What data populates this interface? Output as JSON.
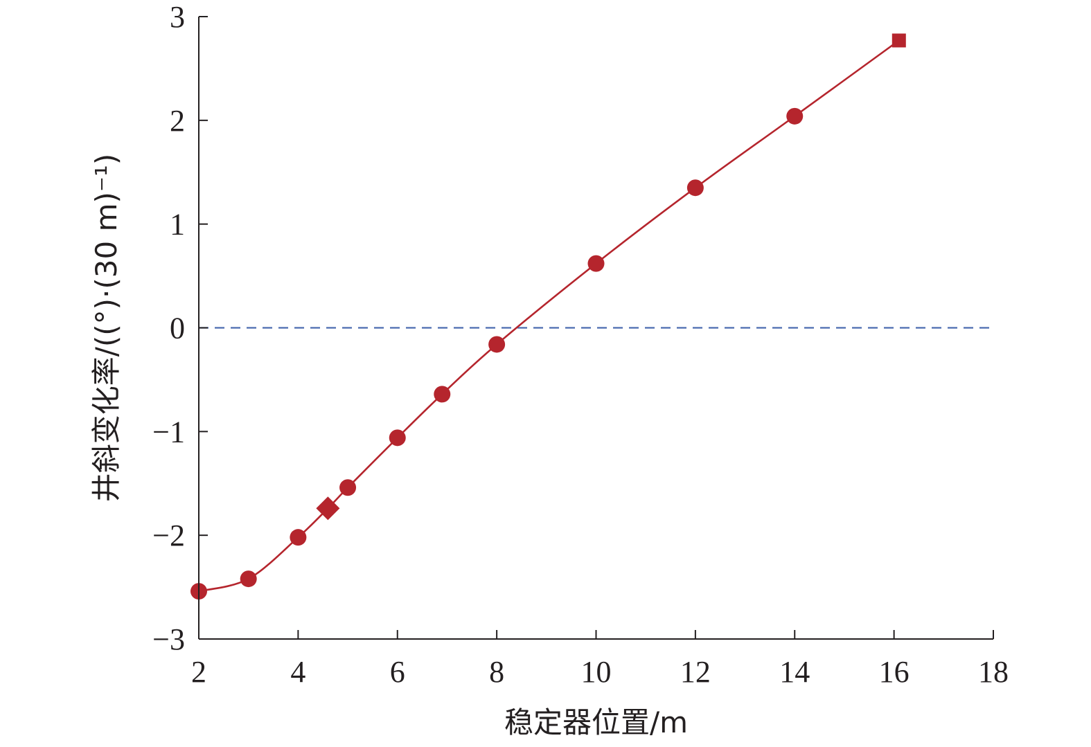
{
  "chart_data": {
    "type": "line",
    "xlabel": "稳定器位置/m",
    "ylabel": "井斜变化率/((°)·(30 m)⁻¹)",
    "xlim": [
      2,
      18
    ],
    "ylim": [
      -3,
      3
    ],
    "xticks": [
      "2",
      "4",
      "6",
      "8",
      "10",
      "12",
      "14",
      "16",
      "18"
    ],
    "yticks": [
      "−3",
      "−2",
      "−1",
      "0",
      "1",
      "2",
      "3"
    ],
    "grid": false,
    "legend": "none",
    "reference_line": {
      "y": 0,
      "style": "dashed",
      "color": "#4a6bb0"
    },
    "series": [
      {
        "color": "#b5252d",
        "points": [
          {
            "x": 2,
            "y": -2.54,
            "marker": "circle"
          },
          {
            "x": 3,
            "y": -2.42,
            "marker": "circle"
          },
          {
            "x": 4,
            "y": -2.02,
            "marker": "circle"
          },
          {
            "x": 4.6,
            "y": -1.74,
            "marker": "diamond"
          },
          {
            "x": 5,
            "y": -1.54,
            "marker": "circle"
          },
          {
            "x": 6,
            "y": -1.06,
            "marker": "circle"
          },
          {
            "x": 6.9,
            "y": -0.64,
            "marker": "circle"
          },
          {
            "x": 8,
            "y": -0.16,
            "marker": "circle"
          },
          {
            "x": 10,
            "y": 0.62,
            "marker": "circle"
          },
          {
            "x": 12,
            "y": 1.35,
            "marker": "circle"
          },
          {
            "x": 14,
            "y": 2.04,
            "marker": "circle"
          },
          {
            "x": 16.1,
            "y": 2.77,
            "marker": "square"
          }
        ]
      }
    ]
  }
}
